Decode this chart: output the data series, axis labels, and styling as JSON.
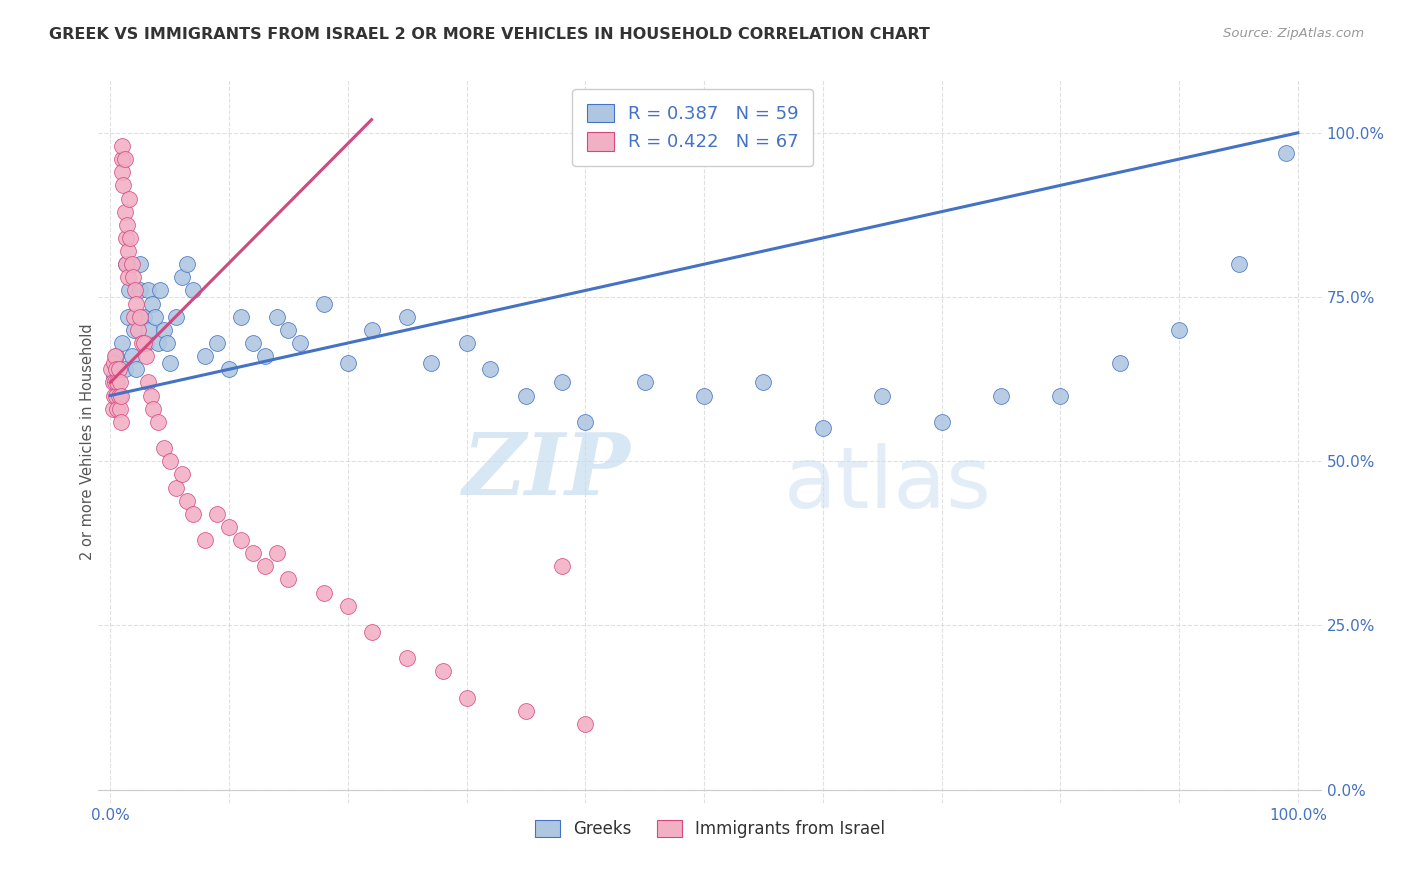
{
  "title": "GREEK VS IMMIGRANTS FROM ISRAEL 2 OR MORE VEHICLES IN HOUSEHOLD CORRELATION CHART",
  "source": "Source: ZipAtlas.com",
  "ylabel_label": "2 or more Vehicles in Household",
  "legend_label1": "Greeks",
  "legend_label2": "Immigrants from Israel",
  "R1": 0.387,
  "N1": 59,
  "R2": 0.422,
  "N2": 67,
  "color_blue": "#aec6e0",
  "color_pink": "#f2b0c4",
  "line_blue": "#4472c4",
  "line_pink": "#d44880",
  "text_blue": "#4472c4",
  "text_dark": "#333333",
  "text_source": "#999999",
  "grid_color": "#cccccc",
  "blue_x": [
    0.003,
    0.005,
    0.008,
    0.01,
    0.012,
    0.013,
    0.015,
    0.016,
    0.018,
    0.02,
    0.022,
    0.025,
    0.025,
    0.028,
    0.03,
    0.032,
    0.033,
    0.035,
    0.038,
    0.04,
    0.042,
    0.045,
    0.048,
    0.05,
    0.055,
    0.06,
    0.065,
    0.07,
    0.08,
    0.09,
    0.1,
    0.11,
    0.12,
    0.13,
    0.14,
    0.15,
    0.16,
    0.18,
    0.2,
    0.22,
    0.25,
    0.27,
    0.3,
    0.32,
    0.35,
    0.38,
    0.4,
    0.45,
    0.5,
    0.55,
    0.6,
    0.65,
    0.7,
    0.75,
    0.8,
    0.85,
    0.9,
    0.95,
    0.99
  ],
  "blue_y": [
    0.63,
    0.66,
    0.6,
    0.68,
    0.64,
    0.8,
    0.72,
    0.76,
    0.66,
    0.7,
    0.64,
    0.76,
    0.8,
    0.72,
    0.68,
    0.76,
    0.7,
    0.74,
    0.72,
    0.68,
    0.76,
    0.7,
    0.68,
    0.65,
    0.72,
    0.78,
    0.8,
    0.76,
    0.66,
    0.68,
    0.64,
    0.72,
    0.68,
    0.66,
    0.72,
    0.7,
    0.68,
    0.74,
    0.65,
    0.7,
    0.72,
    0.65,
    0.68,
    0.64,
    0.6,
    0.62,
    0.56,
    0.62,
    0.6,
    0.62,
    0.55,
    0.6,
    0.56,
    0.6,
    0.6,
    0.65,
    0.7,
    0.8,
    0.97
  ],
  "pink_x": [
    0.001,
    0.002,
    0.002,
    0.003,
    0.003,
    0.004,
    0.004,
    0.005,
    0.005,
    0.006,
    0.006,
    0.007,
    0.007,
    0.008,
    0.008,
    0.009,
    0.009,
    0.01,
    0.01,
    0.01,
    0.011,
    0.012,
    0.012,
    0.013,
    0.013,
    0.014,
    0.015,
    0.015,
    0.016,
    0.017,
    0.018,
    0.019,
    0.02,
    0.021,
    0.022,
    0.023,
    0.025,
    0.027,
    0.028,
    0.03,
    0.032,
    0.034,
    0.036,
    0.04,
    0.045,
    0.05,
    0.055,
    0.06,
    0.065,
    0.07,
    0.08,
    0.09,
    0.1,
    0.11,
    0.12,
    0.13,
    0.14,
    0.15,
    0.18,
    0.2,
    0.22,
    0.25,
    0.28,
    0.3,
    0.35,
    0.38,
    0.4
  ],
  "pink_y": [
    0.64,
    0.62,
    0.58,
    0.6,
    0.65,
    0.62,
    0.66,
    0.6,
    0.64,
    0.62,
    0.58,
    0.64,
    0.6,
    0.62,
    0.58,
    0.6,
    0.56,
    0.96,
    0.98,
    0.94,
    0.92,
    0.96,
    0.88,
    0.84,
    0.8,
    0.86,
    0.78,
    0.82,
    0.9,
    0.84,
    0.8,
    0.78,
    0.72,
    0.76,
    0.74,
    0.7,
    0.72,
    0.68,
    0.68,
    0.66,
    0.62,
    0.6,
    0.58,
    0.56,
    0.52,
    0.5,
    0.46,
    0.48,
    0.44,
    0.42,
    0.38,
    0.42,
    0.4,
    0.38,
    0.36,
    0.34,
    0.36,
    0.32,
    0.3,
    0.28,
    0.24,
    0.2,
    0.18,
    0.14,
    0.12,
    0.34,
    0.1
  ],
  "watermark_zip": "ZIP",
  "watermark_atlas": "atlas",
  "background_color": "#ffffff"
}
